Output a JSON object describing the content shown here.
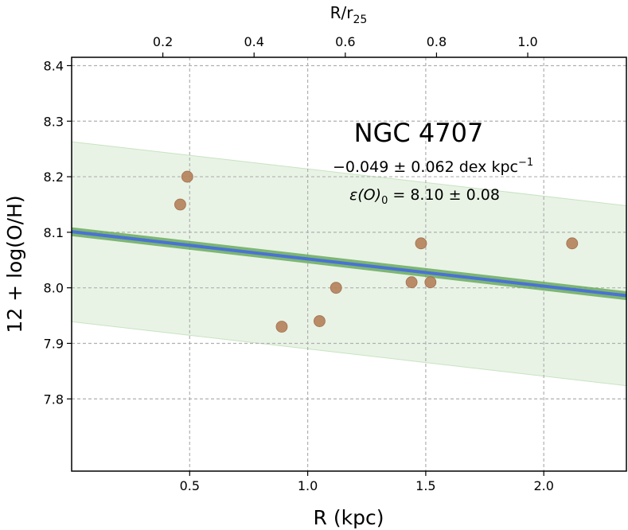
{
  "chart_data": {
    "type": "scatter",
    "title": "NGC 4707",
    "xlabel": "R (kpc)",
    "ylabel": "12 + log(O/H)",
    "top_xlabel": "R/r",
    "top_xlabel_sub": "25",
    "xlim": [
      0.0,
      2.35
    ],
    "ylim": [
      7.67,
      8.415
    ],
    "x_ticks": [
      0.5,
      1.0,
      1.5,
      2.0
    ],
    "x_tick_labels": [
      "0.5",
      "1.0",
      "1.5",
      "2.0"
    ],
    "y_ticks": [
      7.8,
      7.9,
      8.0,
      8.1,
      8.2,
      8.3,
      8.4
    ],
    "y_tick_labels": [
      "7.8",
      "7.9",
      "8.0",
      "8.1",
      "8.2",
      "8.3",
      "8.4"
    ],
    "top_ticks_r_over_r25": [
      0.2,
      0.4,
      0.6,
      0.8,
      1.0
    ],
    "top_tick_labels": [
      "0.2",
      "0.4",
      "0.6",
      "0.8",
      "1.0"
    ],
    "r25_kpc": 1.932,
    "grid": true,
    "points": {
      "x": [
        0.46,
        0.49,
        0.89,
        1.05,
        1.12,
        1.44,
        1.48,
        1.52,
        2.12
      ],
      "y": [
        8.15,
        8.2,
        7.93,
        7.94,
        8.0,
        8.01,
        8.08,
        8.01,
        8.08
      ]
    },
    "fit": {
      "slope": -0.049,
      "intercept": 8.101,
      "inner_band_halfwidth": 0.008,
      "outer_band_halfwidth": 0.162
    },
    "annotation_slope": "−0.049 ± 0.062 dex kpc",
    "annotation_slope_sup": "−1",
    "annotation_eps": "ε(O)",
    "annotation_eps_sub": "0",
    "annotation_eps_value": " = 8.10 ± 0.08",
    "colors": {
      "points": "#b5825c",
      "fit_line": "#4a72d4",
      "inner_band": "#6aaa5e",
      "outer_band": "#e8f3e5",
      "outer_band_edge": "#c8e3c2"
    }
  }
}
